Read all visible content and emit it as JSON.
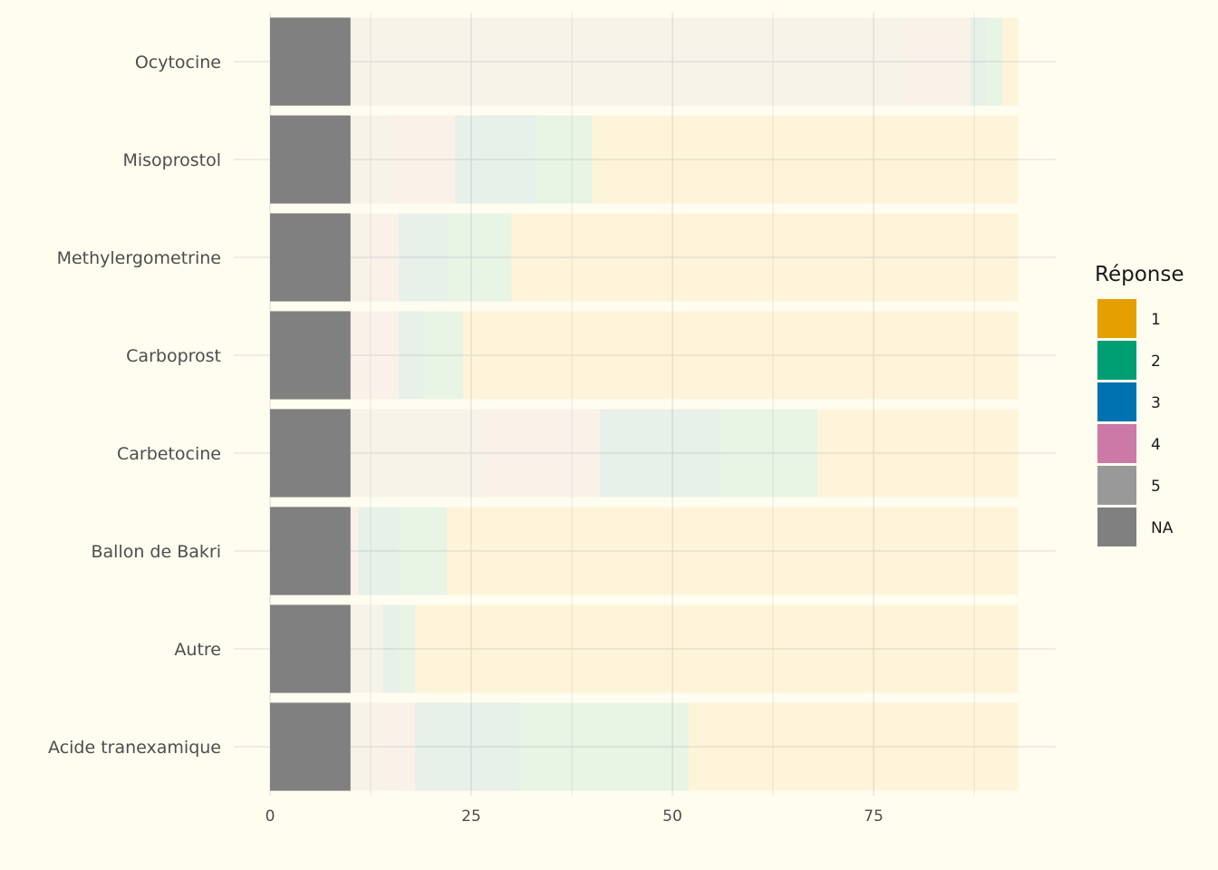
{
  "chart_data": {
    "type": "bar",
    "orientation": "horizontal",
    "stacked": true,
    "categories": [
      "Ocytocine",
      "Misoprostol",
      "Methylergometrine",
      "Carboprost",
      "Carbetocine",
      "Ballon de Bakri",
      "Autre",
      "Acide tranexamique"
    ],
    "series": [
      {
        "name": "NA",
        "color": "#808080",
        "values": [
          10,
          10,
          10,
          10,
          10,
          10,
          10,
          10
        ]
      },
      {
        "name": "5",
        "color": "#999999",
        "values": [
          69,
          5,
          2.5,
          0,
          16.5,
          0,
          4,
          4
        ]
      },
      {
        "name": "4",
        "color": "#CC79A7",
        "values": [
          8,
          8,
          3.5,
          6,
          14.5,
          1,
          0,
          4
        ]
      },
      {
        "name": "3",
        "color": "#0072B2",
        "values": [
          2,
          10,
          6,
          3,
          15,
          5,
          2,
          13
        ]
      },
      {
        "name": "2",
        "color": "#009E73",
        "values": [
          2,
          7,
          8,
          5,
          12,
          6,
          2,
          21
        ]
      },
      {
        "name": "1",
        "color": "#E69F00",
        "values": [
          2,
          53,
          63,
          69,
          25,
          71,
          75,
          41
        ]
      }
    ],
    "xlim": [
      0,
      98
    ],
    "xticks": [
      0,
      25,
      50,
      75
    ],
    "grid": true,
    "legend": {
      "title": "Réponse",
      "placement": "right",
      "items": [
        {
          "label": "1",
          "color": "#E69F00"
        },
        {
          "label": "2",
          "color": "#009E73"
        },
        {
          "label": "3",
          "color": "#0072B2"
        },
        {
          "label": "4",
          "color": "#CC79A7"
        },
        {
          "label": "5",
          "color": "#999999"
        },
        {
          "label": "NA",
          "color": "#808080"
        }
      ]
    }
  }
}
